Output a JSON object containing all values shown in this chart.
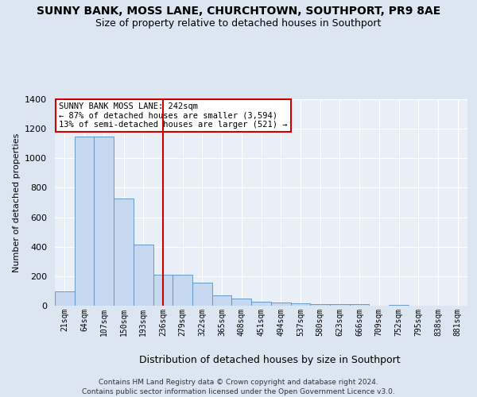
{
  "title": "SUNNY BANK, MOSS LANE, CHURCHTOWN, SOUTHPORT, PR9 8AE",
  "subtitle": "Size of property relative to detached houses in Southport",
  "xlabel": "Distribution of detached houses by size in Southport",
  "ylabel": "Number of detached properties",
  "categories": [
    "21sqm",
    "64sqm",
    "107sqm",
    "150sqm",
    "193sqm",
    "236sqm",
    "279sqm",
    "322sqm",
    "365sqm",
    "408sqm",
    "451sqm",
    "494sqm",
    "537sqm",
    "580sqm",
    "623sqm",
    "666sqm",
    "709sqm",
    "752sqm",
    "795sqm",
    "838sqm",
    "881sqm"
  ],
  "values": [
    95,
    1145,
    1145,
    725,
    415,
    210,
    210,
    155,
    68,
    47,
    28,
    20,
    15,
    12,
    12,
    12,
    0,
    8,
    0,
    0,
    0
  ],
  "bar_color": "#c5d8f0",
  "bar_edge_color": "#5a8fc2",
  "vline_x_index": 5,
  "vline_color": "#cc0000",
  "annotation_text": "SUNNY BANK MOSS LANE: 242sqm\n← 87% of detached houses are smaller (3,594)\n13% of semi-detached houses are larger (521) →",
  "annotation_box_color": "#ffffff",
  "annotation_border_color": "#cc0000",
  "ylim": [
    0,
    1400
  ],
  "yticks": [
    0,
    200,
    400,
    600,
    800,
    1000,
    1200,
    1400
  ],
  "footer_line1": "Contains HM Land Registry data © Crown copyright and database right 2024.",
  "footer_line2": "Contains public sector information licensed under the Open Government Licence v3.0.",
  "bg_color": "#dce6f0",
  "plot_bg_color": "#e8eff7"
}
